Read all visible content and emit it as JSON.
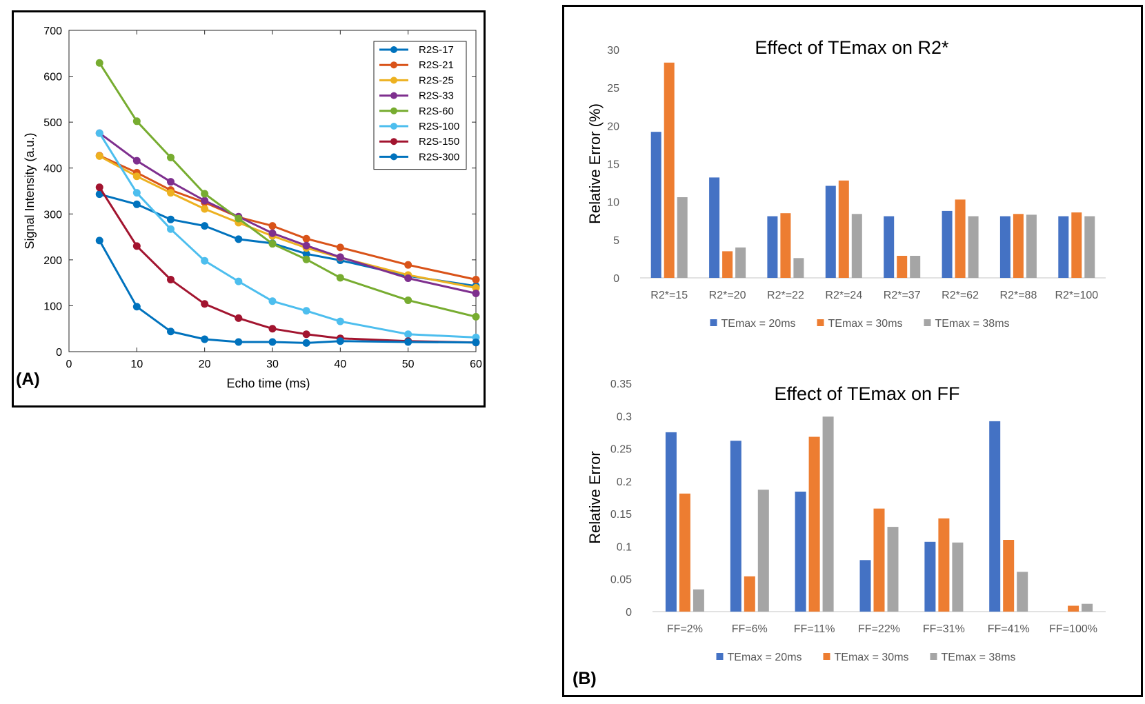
{
  "panel_a_label": "(A)",
  "panel_b_label": "(B)",
  "chart_data": [
    {
      "type": "line",
      "title": "",
      "xlabel": "Echo time (ms)",
      "ylabel": "Signal Intensity (a.u.)",
      "xlim": [
        0,
        60
      ],
      "ylim": [
        0,
        700
      ],
      "xticks": [
        0,
        10,
        20,
        30,
        40,
        50,
        60
      ],
      "yticks": [
        0,
        100,
        200,
        300,
        400,
        500,
        600,
        700
      ],
      "legend_position": "top-right",
      "x": [
        4.5,
        10,
        15,
        20,
        25,
        30,
        35,
        40,
        50,
        60
      ],
      "series": [
        {
          "name": "R2S-17",
          "color": "#0072BD",
          "values": [
            343,
            321,
            288,
            274,
            245,
            236,
            213,
            199,
            165,
            143
          ]
        },
        {
          "name": "R2S-21",
          "color": "#D95319",
          "values": [
            427,
            390,
            352,
            325,
            293,
            274,
            246,
            227,
            189,
            157
          ]
        },
        {
          "name": "R2S-25",
          "color": "#EDB120",
          "values": [
            426,
            382,
            346,
            311,
            281,
            252,
            226,
            205,
            167,
            139
          ]
        },
        {
          "name": "R2S-33",
          "color": "#7E2F8E",
          "values": [
            476,
            416,
            370,
            329,
            294,
            258,
            231,
            206,
            160,
            127
          ]
        },
        {
          "name": "R2S-60",
          "color": "#77AC30",
          "values": [
            629,
            502,
            423,
            344,
            290,
            235,
            201,
            161,
            112,
            76
          ]
        },
        {
          "name": "R2S-100",
          "color": "#4DBEEE",
          "values": [
            476,
            346,
            267,
            198,
            153,
            110,
            89,
            66,
            38,
            31
          ]
        },
        {
          "name": "R2S-150",
          "color": "#A2142F",
          "values": [
            358,
            230,
            157,
            104,
            73,
            50,
            38,
            29,
            23,
            20
          ]
        },
        {
          "name": "R2S-300",
          "color": "#0072BD",
          "values": [
            242,
            98,
            44,
            27,
            21,
            21,
            19,
            23,
            21,
            20
          ]
        }
      ]
    },
    {
      "type": "bar",
      "title": "Effect of TEmax on R2*",
      "xlabel": "",
      "ylabel": "Relative Error (%)",
      "ylim": [
        0,
        30
      ],
      "yticks": [
        0,
        5,
        10,
        15,
        20,
        25,
        30
      ],
      "legend_position": "bottom",
      "categories": [
        "R2*=15",
        "R2*=20",
        "R2*=22",
        "R2*=24",
        "R2*=37",
        "R2*=62",
        "R2*=88",
        "R2*=100"
      ],
      "series": [
        {
          "name": "TEmax = 20ms",
          "color": "#4472C4",
          "values": [
            19.2,
            13.2,
            8.1,
            12.1,
            8.1,
            8.8,
            8.1,
            8.1
          ]
        },
        {
          "name": "TEmax = 30ms",
          "color": "#ED7D31",
          "values": [
            28.3,
            3.5,
            8.5,
            12.8,
            2.9,
            10.3,
            8.4,
            8.6
          ]
        },
        {
          "name": "TEmax = 38ms",
          "color": "#A5A5A5",
          "values": [
            10.6,
            4.0,
            2.6,
            8.4,
            2.9,
            8.1,
            8.3,
            8.1
          ]
        }
      ]
    },
    {
      "type": "bar",
      "title": "Effect of TEmax on FF",
      "xlabel": "",
      "ylabel": "Relative Error",
      "ylim": [
        0,
        0.35
      ],
      "yticks": [
        "0",
        "0.05",
        "0.1",
        "0.15",
        "0.2",
        "0.25",
        "0.3",
        "0.35"
      ],
      "legend_position": "bottom",
      "categories": [
        "FF=2%",
        "FF=6%",
        "FF=11%",
        "FF=22%",
        "FF=31%",
        "FF=41%",
        "FF=100%"
      ],
      "series": [
        {
          "name": "TEmax = 20ms",
          "color": "#4472C4",
          "values": [
            0.275,
            0.262,
            0.184,
            0.079,
            0.107,
            0.292,
            0
          ]
        },
        {
          "name": "TEmax = 30ms",
          "color": "#ED7D31",
          "values": [
            0.181,
            0.054,
            0.268,
            0.158,
            0.143,
            0.11,
            0.009
          ]
        },
        {
          "name": "TEmax = 38ms",
          "color": "#A5A5A5",
          "values": [
            0.034,
            0.187,
            0.299,
            0.13,
            0.106,
            0.061,
            0.012
          ]
        }
      ]
    }
  ]
}
